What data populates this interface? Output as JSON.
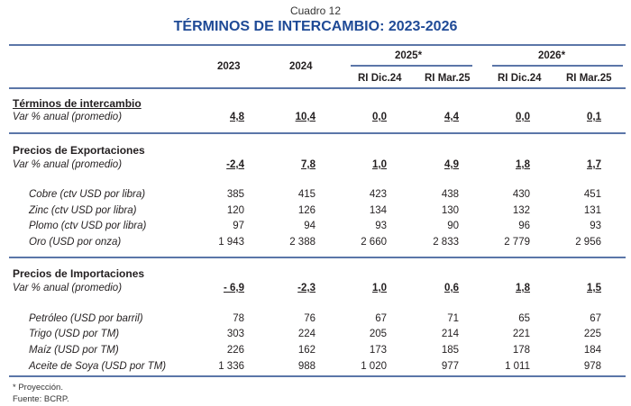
{
  "header": {
    "cuadro": "Cuadro 12",
    "title": "TÉRMINOS DE INTERCAMBIO: 2023-2026"
  },
  "columns": {
    "y2023": "2023",
    "y2024": "2024",
    "y2025": "2025*",
    "y2026": "2026*",
    "sub": [
      "RI Dic.24",
      "RI Mar.25",
      "RI Dic.24",
      "RI Mar.25"
    ]
  },
  "sections": [
    {
      "title": "Términos de intercambio",
      "var_label": "Var % anual (promedio)",
      "var_values": [
        "4,8",
        "10,4",
        "0,0",
        "4,4",
        "0,0",
        "0,1"
      ],
      "items": []
    },
    {
      "title": "Precios de Exportaciones",
      "var_label": "Var % anual (promedio)",
      "var_values": [
        "-2,4",
        "7,8",
        "1,0",
        "4,9",
        "1,8",
        "1,7"
      ],
      "items": [
        {
          "label": "Cobre (ctv USD por libra)",
          "values": [
            "385",
            "415",
            "423",
            "438",
            "430",
            "451"
          ]
        },
        {
          "label": "Zinc (ctv USD por libra)",
          "values": [
            "120",
            "126",
            "134",
            "130",
            "132",
            "131"
          ]
        },
        {
          "label": "Plomo (ctv USD por libra)",
          "values": [
            "97",
            "94",
            "93",
            "90",
            "96",
            "93"
          ]
        },
        {
          "label": "Oro (USD por onza)",
          "values": [
            "1 943",
            "2 388",
            "2 660",
            "2 833",
            "2 779",
            "2 956"
          ]
        }
      ]
    },
    {
      "title": "Precios de Importaciones",
      "var_label": "Var % anual (promedio)",
      "var_values": [
        "- 6,9",
        "-2,3",
        "1,0",
        "0,6",
        "1,8",
        "1,5"
      ],
      "items": [
        {
          "label": "Petróleo (USD por barril)",
          "values": [
            "78",
            "76",
            "67",
            "71",
            "65",
            "67"
          ]
        },
        {
          "label": "Trigo (USD por TM)",
          "values": [
            "303",
            "224",
            "205",
            "214",
            "221",
            "225"
          ]
        },
        {
          "label": "Maíz (USD por TM)",
          "values": [
            "226",
            "162",
            "173",
            "185",
            "178",
            "184"
          ]
        },
        {
          "label": "Aceite de Soya (USD por TM)",
          "values": [
            "1 336",
            "988",
            "1 020",
            "977",
            "1 011",
            "978"
          ]
        }
      ]
    }
  ],
  "footnotes": [
    "* Proyección.",
    "Fuente: BCRP."
  ]
}
